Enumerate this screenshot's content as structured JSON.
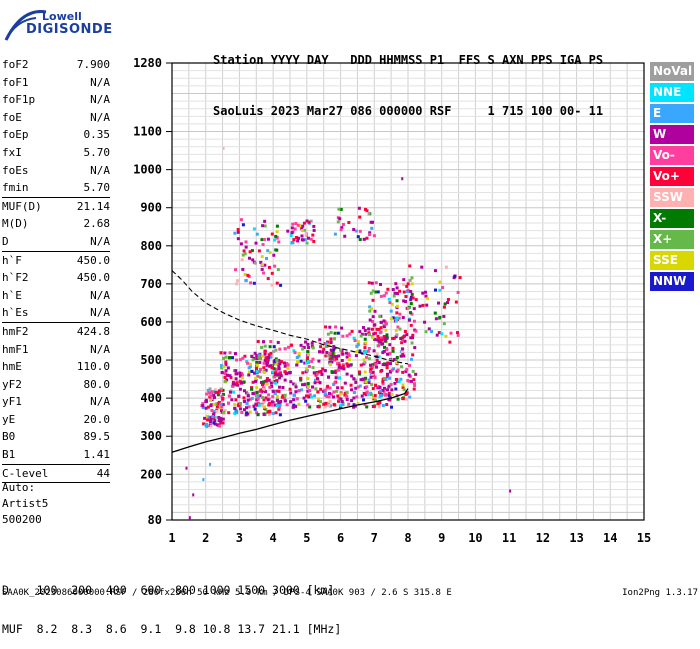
{
  "logo": {
    "line1": "Lowell",
    "line2": "DIGISONDE"
  },
  "header": {
    "line1": "Station YYYY DAY   DDD HHMMSS P1  FFS S AXN PPS IGA PS",
    "line2": "SaoLuis 2023 Mar27 086 000000 RSF     1 715 100 00- 11"
  },
  "params": [
    {
      "name": "foF2",
      "value": "7.900"
    },
    {
      "name": "foF1",
      "value": "N/A"
    },
    {
      "name": "foF1p",
      "value": "N/A"
    },
    {
      "name": "foE",
      "value": "N/A"
    },
    {
      "name": "foEp",
      "value": "0.35"
    },
    {
      "name": "fxI",
      "value": "5.70"
    },
    {
      "name": "foEs",
      "value": "N/A"
    },
    {
      "name": "fmin",
      "value": "5.70"
    },
    {
      "sep": true
    },
    {
      "name": "MUF(D)",
      "value": "21.14"
    },
    {
      "name": "M(D)",
      "value": "2.68"
    },
    {
      "name": "D",
      "value": "N/A"
    },
    {
      "sep": true
    },
    {
      "name": "h`F",
      "value": "450.0"
    },
    {
      "name": "h`F2",
      "value": "450.0"
    },
    {
      "name": "h`E",
      "value": "N/A"
    },
    {
      "name": "h`Es",
      "value": "N/A"
    },
    {
      "sep": true
    },
    {
      "name": "hmF2",
      "value": "424.8"
    },
    {
      "name": "hmF1",
      "value": "N/A"
    },
    {
      "name": "hmE",
      "value": "110.0"
    },
    {
      "name": "yF2",
      "value": "80.0"
    },
    {
      "name": "yF1",
      "value": "N/A"
    },
    {
      "name": "yE",
      "value": "20.0"
    },
    {
      "name": "B0",
      "value": "89.5"
    },
    {
      "name": "B1",
      "value": "1.41"
    },
    {
      "sep": true
    },
    {
      "name": "C-level",
      "value": "44"
    },
    {
      "sep": true
    }
  ],
  "extra": {
    "auto": "Auto:",
    "artist": "Artist5",
    "code": "500200"
  },
  "legend": [
    {
      "label": "NoVal",
      "color": "#9e9e9e"
    },
    {
      "label": "NNE",
      "color": "#00e5ff"
    },
    {
      "label": "E",
      "color": "#3aa7ff"
    },
    {
      "label": "W",
      "color": "#b0009e"
    },
    {
      "label": "Vo-",
      "color": "#ff3fa0"
    },
    {
      "label": "Vo+",
      "color": "#ff0038"
    },
    {
      "label": "SSW",
      "color": "#ffb0b0"
    },
    {
      "label": "X-",
      "color": "#007a00"
    },
    {
      "label": "X+",
      "color": "#66b84a"
    },
    {
      "label": "SSE",
      "color": "#d8d800"
    },
    {
      "label": "NNW",
      "color": "#1a1acc"
    }
  ],
  "footer": {
    "line1": "D    100  200  400  600  800 1000 1500 3000 [km]",
    "line2": "MUF  8.2  8.3  8.6  9.1  9.8 10.8 13.7 21.1 [MHz]",
    "bottom": "SAA0K_2023086000000.RSF / 280fx256h 50 kHz 5.0 km / DPS-4 SAA0K 903 / 2.6 S 315.8 E",
    "version": "Ion2Png 1.3.17"
  },
  "chart_data": {
    "type": "scatter",
    "x_range": [
      1,
      15
    ],
    "y_range": [
      80,
      1280
    ],
    "x_ticks": [
      1,
      2,
      3,
      4,
      5,
      6,
      7,
      8,
      9,
      10,
      11,
      12,
      13,
      14,
      15
    ],
    "y_ticks": [
      80,
      200,
      300,
      400,
      500,
      600,
      700,
      800,
      900,
      1000,
      1100,
      1280
    ],
    "grid": true,
    "profile_solid": [
      [
        1.0,
        258
      ],
      [
        1.5,
        272
      ],
      [
        2.0,
        285
      ],
      [
        2.5,
        296
      ],
      [
        3.0,
        308
      ],
      [
        3.5,
        318
      ],
      [
        4.0,
        330
      ],
      [
        4.5,
        342
      ],
      [
        5.0,
        352
      ],
      [
        5.5,
        362
      ],
      [
        6.0,
        372
      ],
      [
        6.5,
        382
      ],
      [
        7.0,
        390
      ],
      [
        7.5,
        400
      ],
      [
        7.9,
        412
      ],
      [
        8.0,
        425
      ]
    ],
    "profile_dashed": [
      [
        1.0,
        735
      ],
      [
        1.3,
        710
      ],
      [
        1.6,
        680
      ],
      [
        2.0,
        650
      ],
      [
        2.5,
        625
      ],
      [
        3.0,
        605
      ],
      [
        3.5,
        590
      ],
      [
        4.0,
        578
      ],
      [
        4.5,
        565
      ],
      [
        5.0,
        555
      ],
      [
        5.5,
        540
      ],
      [
        6.0,
        530
      ],
      [
        6.5,
        520
      ],
      [
        7.0,
        510
      ],
      [
        7.5,
        498
      ],
      [
        8.0,
        490
      ]
    ],
    "echo_clusters": [
      {
        "x": [
          1.8,
          2.5
        ],
        "y": [
          330,
          430
        ],
        "count": 90
      },
      {
        "x": [
          2.4,
          4.2
        ],
        "y": [
          360,
          530
        ],
        "count": 320
      },
      {
        "x": [
          3.5,
          6.0
        ],
        "y": [
          380,
          560
        ],
        "count": 320
      },
      {
        "x": [
          5.5,
          7.5
        ],
        "y": [
          380,
          600
        ],
        "count": 260
      },
      {
        "x": [
          6.8,
          8.2
        ],
        "y": [
          400,
          720
        ],
        "count": 220
      },
      {
        "x": [
          2.8,
          4.2
        ],
        "y": [
          700,
          880
        ],
        "count": 70
      },
      {
        "x": [
          4.3,
          5.2
        ],
        "y": [
          810,
          870
        ],
        "count": 40
      },
      {
        "x": [
          5.8,
          7.0
        ],
        "y": [
          820,
          910
        ],
        "count": 30
      },
      {
        "x": [
          8.0,
          9.5
        ],
        "y": [
          540,
          760
        ],
        "count": 50
      }
    ],
    "isolated_points": [
      [
        1.4,
        220
      ],
      [
        1.6,
        150
      ],
      [
        1.9,
        190
      ],
      [
        2.1,
        230
      ],
      [
        2.5,
        1060
      ],
      [
        7.8,
        980
      ],
      [
        11.0,
        160
      ],
      [
        1.5,
        90
      ]
    ]
  }
}
